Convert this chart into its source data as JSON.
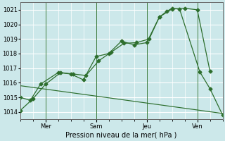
{
  "xlabel": "Pression niveau de la mer( hPa )",
  "bg_color": "#cce8ea",
  "grid_color": "#ffffff",
  "line_color": "#2d6e2d",
  "vline_color": "#3a7a3a",
  "ylim": [
    1013.5,
    1021.5
  ],
  "yticks": [
    1014,
    1015,
    1016,
    1017,
    1018,
    1019,
    1020,
    1021
  ],
  "x_tick_labels": [
    "Mer",
    "Sam",
    "Jeu",
    "Ven"
  ],
  "x_tick_pos": [
    1,
    3,
    5,
    7
  ],
  "xlim": [
    0,
    8
  ],
  "series1_x": [
    0.0,
    0.4,
    0.8,
    1.5,
    2.0,
    2.5,
    3.0,
    3.5,
    4.0,
    4.5,
    5.0,
    5.5,
    6.0,
    6.5,
    7.0,
    7.5
  ],
  "series1_y": [
    1015.0,
    1014.8,
    1015.9,
    1016.7,
    1016.6,
    1016.2,
    1017.8,
    1018.0,
    1018.85,
    1018.6,
    1018.75,
    1020.5,
    1021.05,
    1021.1,
    1021.0,
    1016.8
  ],
  "series2_x": [
    0.0,
    0.5,
    1.0,
    1.6,
    2.1,
    2.6,
    3.1,
    3.6,
    4.1,
    4.6,
    5.1,
    5.5,
    5.8,
    6.0,
    6.3,
    7.1,
    7.5,
    8.0
  ],
  "series2_y": [
    1014.1,
    1014.9,
    1015.9,
    1016.7,
    1016.6,
    1016.5,
    1017.5,
    1018.1,
    1018.7,
    1018.75,
    1019.0,
    1020.5,
    1020.9,
    1021.1,
    1021.05,
    1016.75,
    1015.6,
    1013.8
  ],
  "series3_x": [
    0.0,
    8.0
  ],
  "series3_y": [
    1015.8,
    1013.9
  ],
  "vlines_x": [
    1,
    3,
    5,
    7
  ]
}
